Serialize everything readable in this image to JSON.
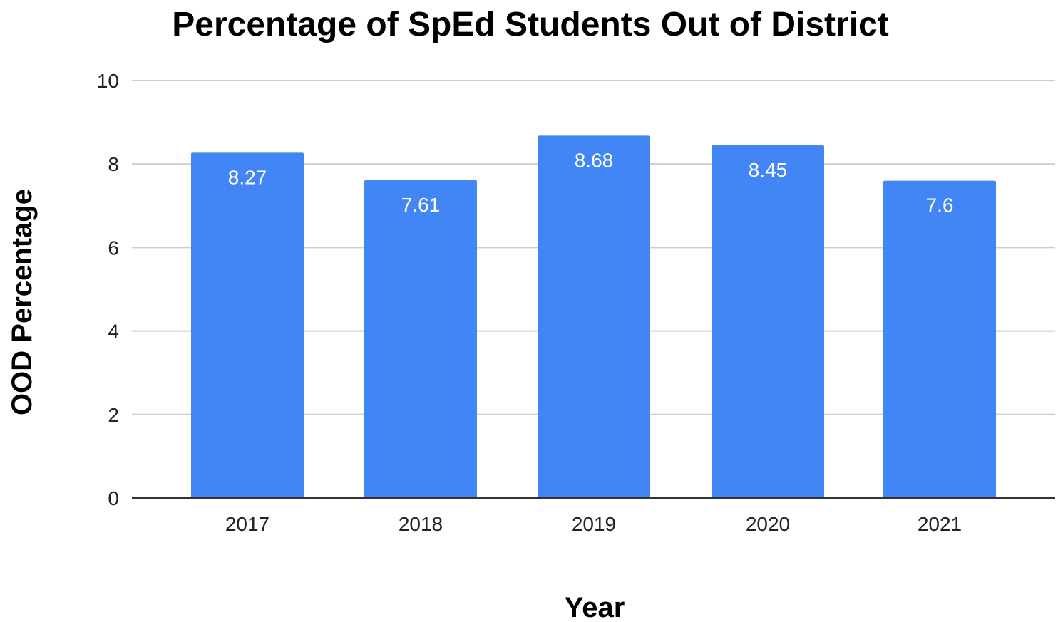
{
  "chart_data": {
    "type": "bar",
    "title": "Percentage of SpEd Students Out of District",
    "xlabel": "Year",
    "ylabel": "OOD Percentage",
    "categories": [
      "2017",
      "2018",
      "2019",
      "2020",
      "2021"
    ],
    "values": [
      8.27,
      7.61,
      8.68,
      8.45,
      7.6
    ],
    "data_labels": [
      "8.27",
      "7.61",
      "8.68",
      "8.45",
      "7.6"
    ],
    "ylim": [
      0,
      10
    ],
    "yticks": [
      0,
      2,
      4,
      6,
      8,
      10
    ],
    "grid": true,
    "legend": "none",
    "bar_color": "#4285f4"
  }
}
